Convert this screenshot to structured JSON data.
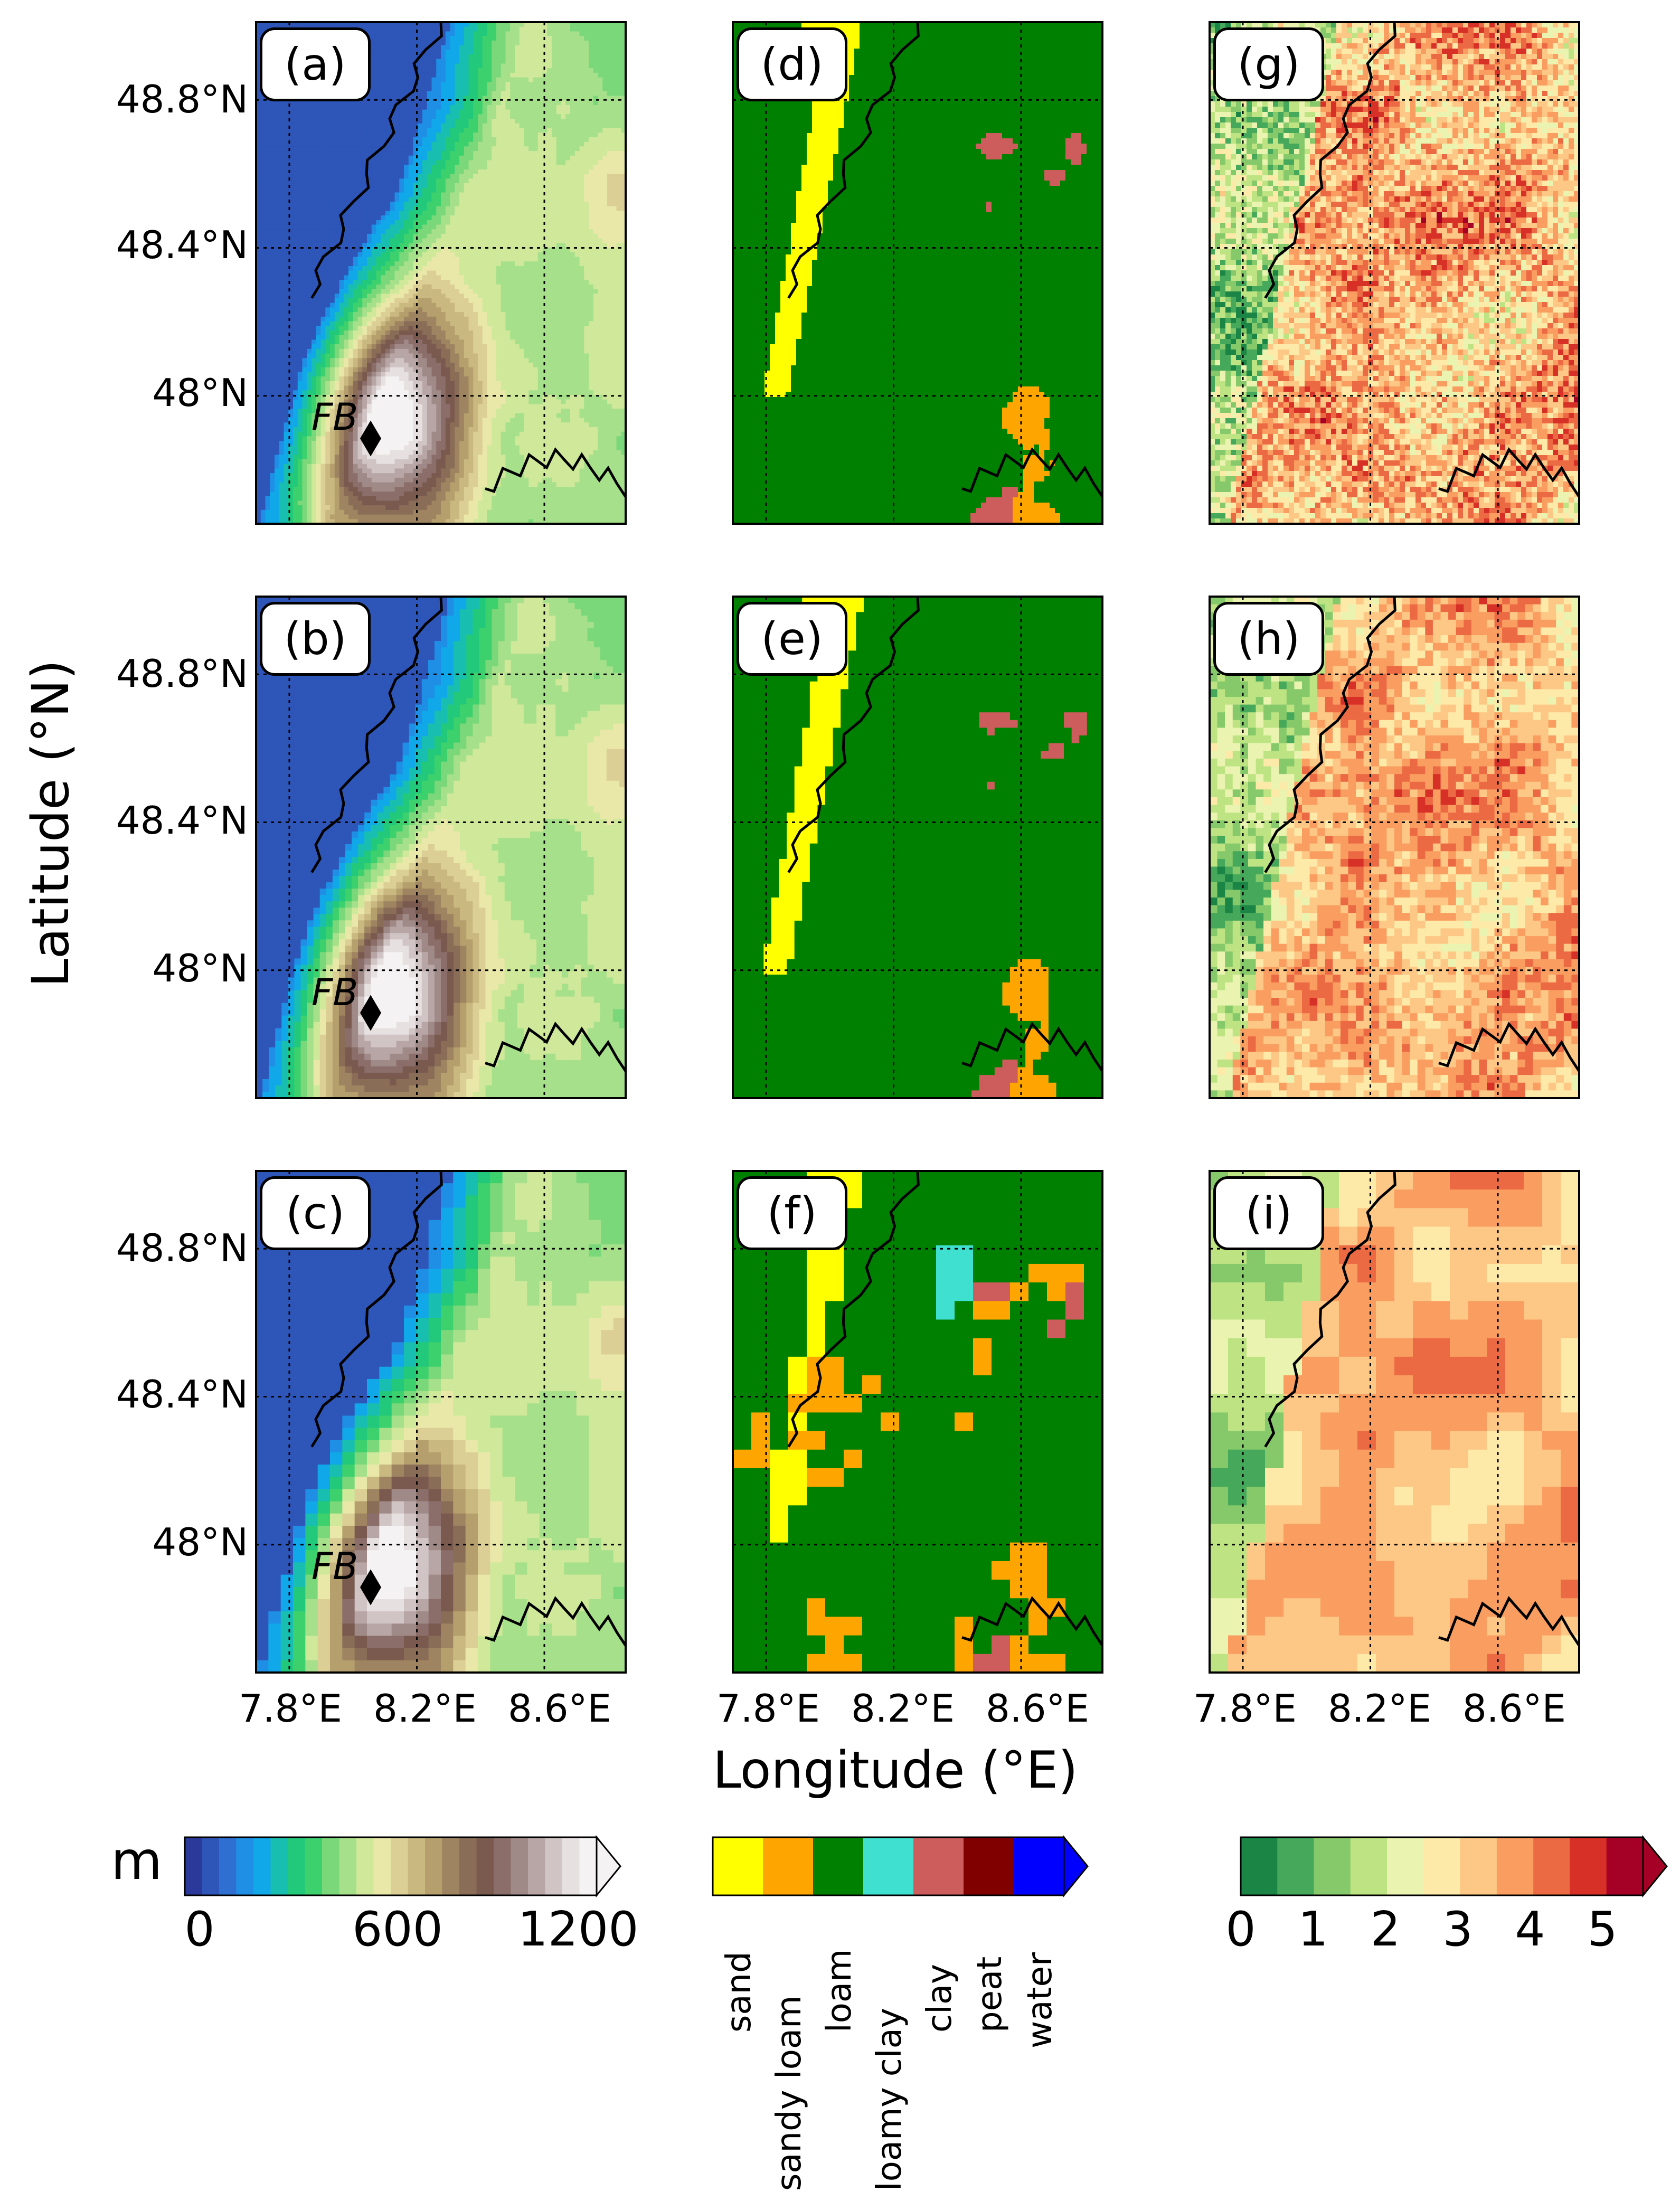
{
  "figure": {
    "ylabel": "Latitude (°N)",
    "xlabel": "Longitude (°E)",
    "lat_ticks": [
      "48.8°N",
      "48.4°N",
      "48°N"
    ],
    "lon_ticks": [
      "7.8°E",
      "8.2°E",
      "8.6°E"
    ],
    "site_marker_label": "FB"
  },
  "panels": [
    {
      "tag": "(a)",
      "field": "elevation"
    },
    {
      "tag": "(b)",
      "field": "elevation"
    },
    {
      "tag": "(c)",
      "field": "elevation"
    },
    {
      "tag": "(d)",
      "field": "soil"
    },
    {
      "tag": "(e)",
      "field": "soil"
    },
    {
      "tag": "(f)",
      "field": "soil"
    },
    {
      "tag": "(g)",
      "field": "index"
    },
    {
      "tag": "(h)",
      "field": "index"
    },
    {
      "tag": "(i)",
      "field": "index"
    }
  ],
  "colorbars": {
    "elevation": {
      "unit": "m",
      "ticks": [
        "0",
        "600",
        "1200"
      ],
      "colors": [
        "#2b3a9a",
        "#2e55b8",
        "#2f6fd2",
        "#1f8fe6",
        "#10a8e8",
        "#18bfb0",
        "#22c97a",
        "#3dd16e",
        "#7ad87a",
        "#a6e08a",
        "#cfe89a",
        "#e9e8a8",
        "#dccf95",
        "#c9b880",
        "#b59f6c",
        "#9e8460",
        "#8a6d57",
        "#7a5a4f",
        "#8b6e6a",
        "#a08a88",
        "#b8a6a6",
        "#d0c4c4",
        "#e6e0e0",
        "#f4f2f2"
      ]
    },
    "soil": {
      "classes": [
        "sand",
        "sandy loam",
        "loam",
        "loamy clay",
        "clay",
        "peat",
        "water"
      ],
      "colors": [
        "#ffff00",
        "#ffa500",
        "#008000",
        "#40e0d0",
        "#cd5c5c",
        "#800000",
        "#0000ff"
      ]
    },
    "index": {
      "ticks": [
        "0",
        "1",
        "2",
        "3",
        "4",
        "5"
      ],
      "colors": [
        "#1a8545",
        "#45a85a",
        "#86c96a",
        "#bde383",
        "#eaf4b0",
        "#fde9a8",
        "#fdc785",
        "#f99e60",
        "#ec6a43",
        "#d73027",
        "#a50026"
      ]
    }
  }
}
